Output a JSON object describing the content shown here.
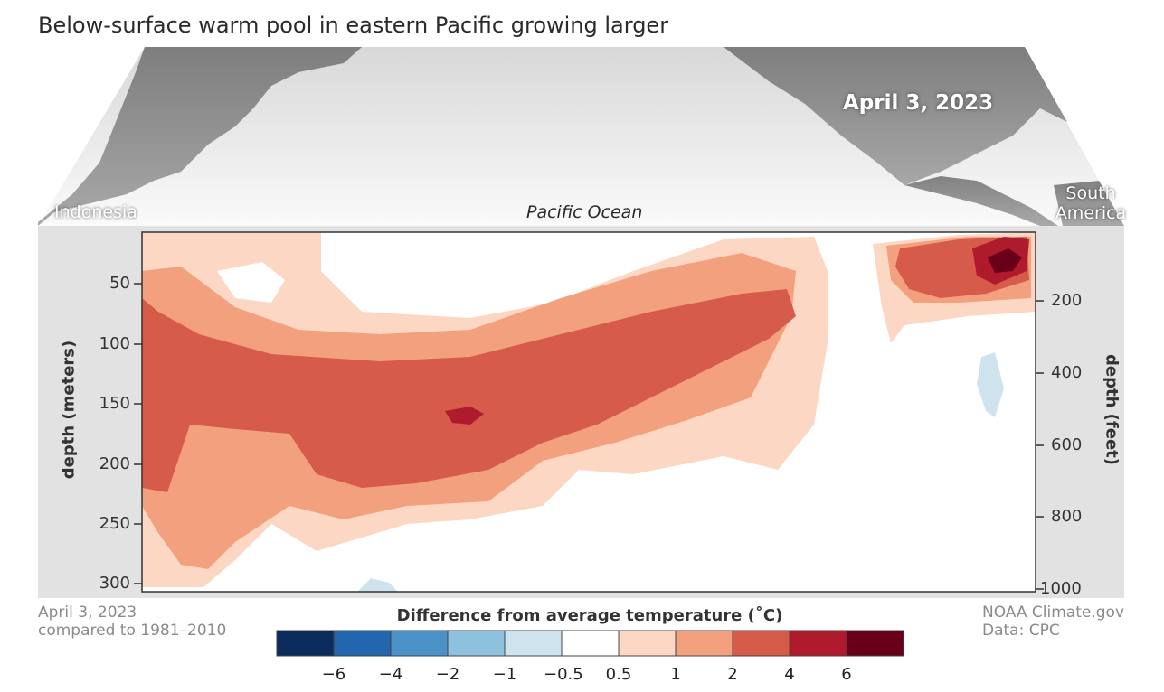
{
  "title": "Below-surface warm pool in eastern Pacific growing larger",
  "map": {
    "date_label": "April 3, 2023",
    "left_label": "Indonesia",
    "right_label": "South America",
    "ocean_label": "Pacific Ocean"
  },
  "axes": {
    "left_label": "depth (meters)",
    "left_ticks": [
      "50",
      "100",
      "150",
      "200",
      "250",
      "300"
    ],
    "right_label": "depth (feet)",
    "right_ticks": [
      "200",
      "400",
      "600",
      "800",
      "1000"
    ]
  },
  "footer": {
    "left_line1": "April 3, 2023",
    "left_line2": "compared to 1981–2010",
    "right_line1": "NOAA Climate.gov",
    "right_line2": "Data: CPC"
  },
  "legend": {
    "title": "Difference from average temperature (˚C)",
    "colors": [
      "#0c2c5c",
      "#2266b0",
      "#4b92c8",
      "#8ec1de",
      "#cfe3ef",
      "#ffffff",
      "#fcd8c4",
      "#f2a07e",
      "#d65b4a",
      "#b01a2d",
      "#670018"
    ],
    "ticks": [
      "−6",
      "−4",
      "−2",
      "−1",
      "−0.5",
      "0.5",
      "1",
      "2",
      "4",
      "6"
    ]
  }
}
